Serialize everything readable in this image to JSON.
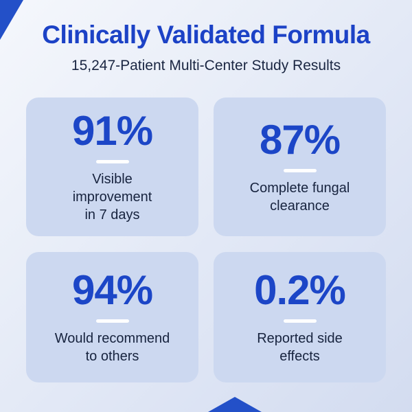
{
  "header": {
    "title": "Clinically Validated Formula",
    "subtitle": "15,247-Patient Multi-Center Study Results"
  },
  "stats": [
    {
      "value": "91%",
      "label": "Visible\nimprovement\nin 7 days"
    },
    {
      "value": "87%",
      "label": "Complete fungal\nclearance"
    },
    {
      "value": "94%",
      "label": "Would recommend\nto others"
    },
    {
      "value": "0.2%",
      "label": "Reported side\neffects"
    }
  ],
  "colors": {
    "accent_blue": "#1c42c6",
    "shape_blue": "#2350c8",
    "card_background": "#ccd8f0",
    "text_dark": "#17233e",
    "divider_white": "#ffffff"
  },
  "chart_data": {
    "type": "table",
    "title": "Clinically Validated Formula",
    "subtitle": "15,247-Patient Multi-Center Study Results",
    "categories": [
      "Visible improvement in 7 days",
      "Complete fungal clearance",
      "Would recommend to others",
      "Reported side effects"
    ],
    "values": [
      91,
      87,
      94,
      0.2
    ],
    "unit": "percent",
    "patient_count_shown": "15,247"
  }
}
